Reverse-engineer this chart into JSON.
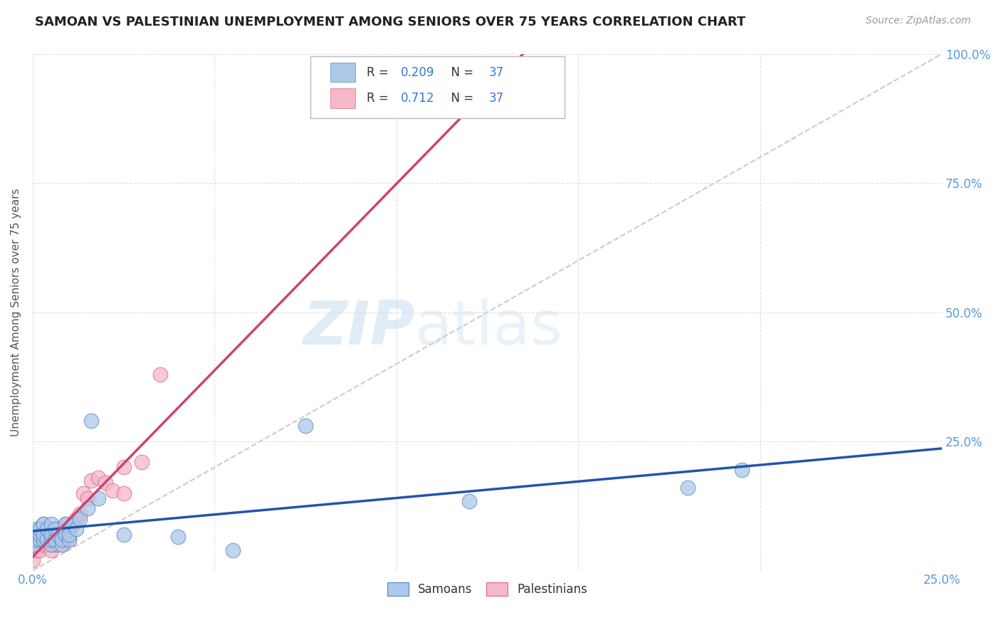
{
  "title": "SAMOAN VS PALESTINIAN UNEMPLOYMENT AMONG SENIORS OVER 75 YEARS CORRELATION CHART",
  "source": "Source: ZipAtlas.com",
  "ylabel": "Unemployment Among Seniors over 75 years",
  "xlim": [
    0.0,
    0.25
  ],
  "ylim": [
    0.0,
    1.0
  ],
  "xticks": [
    0.0,
    0.05,
    0.1,
    0.15,
    0.2,
    0.25
  ],
  "yticks": [
    0.0,
    0.25,
    0.5,
    0.75,
    1.0
  ],
  "xtick_labels": [
    "0.0%",
    "",
    "",
    "",
    "",
    "25.0%"
  ],
  "ytick_labels_right": [
    "",
    "25.0%",
    "50.0%",
    "75.0%",
    "100.0%"
  ],
  "watermark_zip": "ZIP",
  "watermark_atlas": "atlas",
  "legend_R_samoan": "0.209",
  "legend_R_palestinian": "0.712",
  "legend_N": "37",
  "samoan_color": "#adc8e8",
  "samoan_edge_color": "#5588cc",
  "samoan_line_color": "#2255aa",
  "palestinian_color": "#f4b8c8",
  "palestinian_edge_color": "#dd6688",
  "palestinian_line_color": "#cc4477",
  "diagonal_color": "#cccccc",
  "background_color": "#ffffff",
  "grid_color": "#dddddd",
  "samoan_x": [
    0.0,
    0.001,
    0.001,
    0.002,
    0.002,
    0.002,
    0.003,
    0.003,
    0.003,
    0.004,
    0.004,
    0.005,
    0.005,
    0.005,
    0.005,
    0.006,
    0.006,
    0.007,
    0.008,
    0.008,
    0.009,
    0.009,
    0.01,
    0.01,
    0.011,
    0.012,
    0.013,
    0.015,
    0.016,
    0.018,
    0.025,
    0.04,
    0.055,
    0.075,
    0.12,
    0.18,
    0.195
  ],
  "samoan_y": [
    0.05,
    0.06,
    0.08,
    0.06,
    0.07,
    0.08,
    0.06,
    0.07,
    0.09,
    0.06,
    0.08,
    0.05,
    0.06,
    0.07,
    0.09,
    0.06,
    0.08,
    0.07,
    0.05,
    0.06,
    0.07,
    0.09,
    0.06,
    0.07,
    0.09,
    0.08,
    0.1,
    0.12,
    0.29,
    0.14,
    0.07,
    0.065,
    0.04,
    0.28,
    0.135,
    0.16,
    0.195
  ],
  "palestinian_x": [
    0.0,
    0.001,
    0.001,
    0.002,
    0.002,
    0.002,
    0.003,
    0.003,
    0.003,
    0.004,
    0.004,
    0.005,
    0.005,
    0.005,
    0.006,
    0.006,
    0.007,
    0.007,
    0.008,
    0.008,
    0.009,
    0.009,
    0.01,
    0.01,
    0.011,
    0.012,
    0.013,
    0.014,
    0.015,
    0.016,
    0.018,
    0.02,
    0.022,
    0.025,
    0.025,
    0.03,
    0.035
  ],
  "palestinian_y": [
    0.02,
    0.04,
    0.06,
    0.04,
    0.06,
    0.08,
    0.05,
    0.07,
    0.09,
    0.05,
    0.08,
    0.04,
    0.06,
    0.08,
    0.05,
    0.07,
    0.05,
    0.08,
    0.05,
    0.08,
    0.06,
    0.09,
    0.06,
    0.08,
    0.09,
    0.1,
    0.11,
    0.15,
    0.14,
    0.175,
    0.18,
    0.17,
    0.155,
    0.15,
    0.2,
    0.21,
    0.38
  ]
}
